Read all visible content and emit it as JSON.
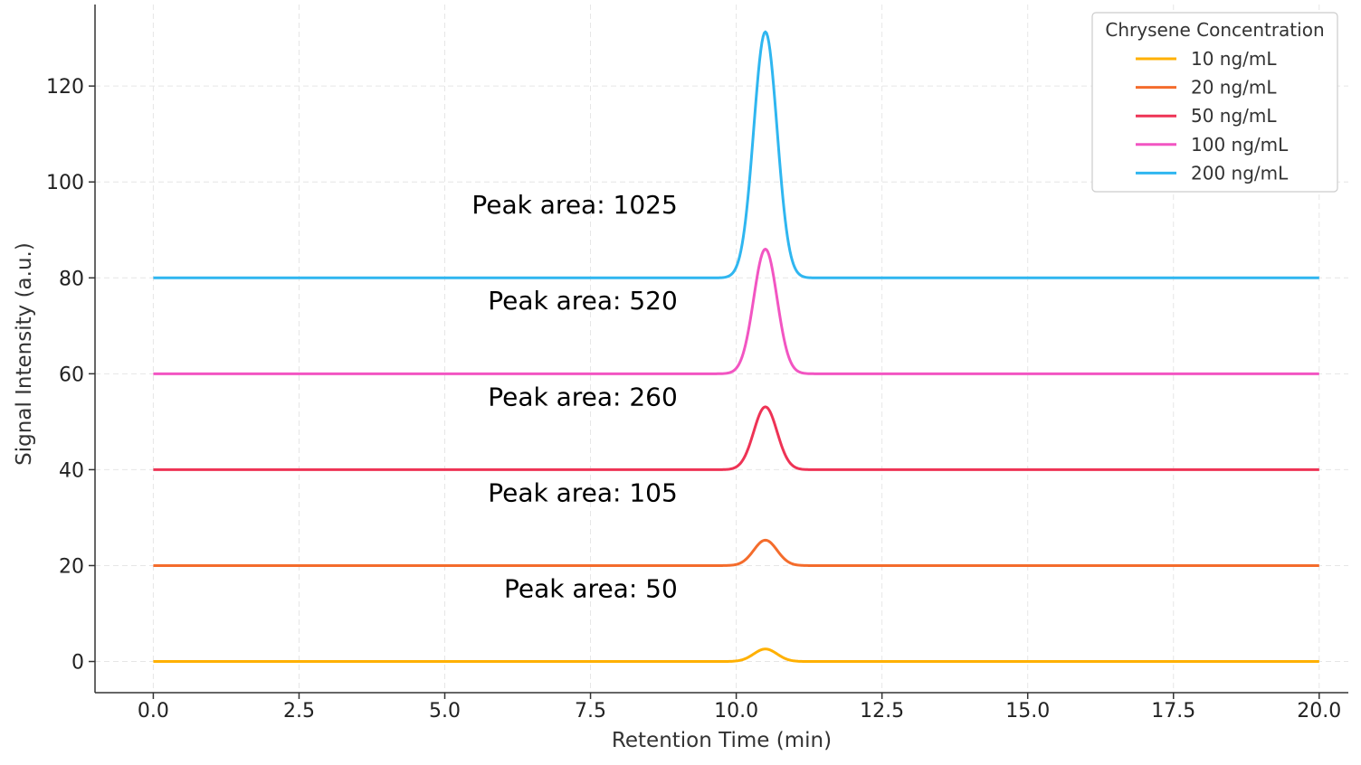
{
  "chart_data": {
    "type": "line",
    "xlabel": "Retention Time (min)",
    "ylabel": "Signal Intensity (a.u.)",
    "xlim": [
      -1.0,
      20.5
    ],
    "ylim": [
      -6.5,
      137
    ],
    "xticks": [
      0.0,
      2.5,
      5.0,
      7.5,
      10.0,
      12.5,
      15.0,
      17.5,
      20.0
    ],
    "xtick_labels": [
      "0.0",
      "2.5",
      "5.0",
      "7.5",
      "10.0",
      "12.5",
      "15.0",
      "17.5",
      "20.0"
    ],
    "yticks": [
      0,
      20,
      40,
      60,
      80,
      100,
      120
    ],
    "ytick_labels": [
      "0",
      "20",
      "40",
      "60",
      "80",
      "100",
      "120"
    ],
    "grid": true,
    "legend": {
      "title": "Chrysene Concentration",
      "placement": "top-right"
    },
    "peak_center": 10.5,
    "series": [
      {
        "name": "10 ng/mL",
        "color": "#FFB000",
        "baseline": 0,
        "peak_height": 2.6,
        "peak_width_sigma": 0.2,
        "annotation": "Peak area: 50"
      },
      {
        "name": "20 ng/mL",
        "color": "#F46C2C",
        "baseline": 20,
        "peak_height": 5.3,
        "peak_width_sigma": 0.2,
        "annotation": "Peak area: 105"
      },
      {
        "name": "50 ng/mL",
        "color": "#EE3355",
        "baseline": 40,
        "peak_height": 13.1,
        "peak_width_sigma": 0.2,
        "annotation": "Peak area: 260"
      },
      {
        "name": "100 ng/mL",
        "color": "#F255C2",
        "baseline": 60,
        "peak_height": 26.0,
        "peak_width_sigma": 0.2,
        "annotation": "Peak area: 520"
      },
      {
        "name": "200 ng/mL",
        "color": "#2FB6F0",
        "baseline": 80,
        "peak_height": 51.3,
        "peak_width_sigma": 0.2,
        "annotation": "Peak area: 1025"
      }
    ]
  }
}
